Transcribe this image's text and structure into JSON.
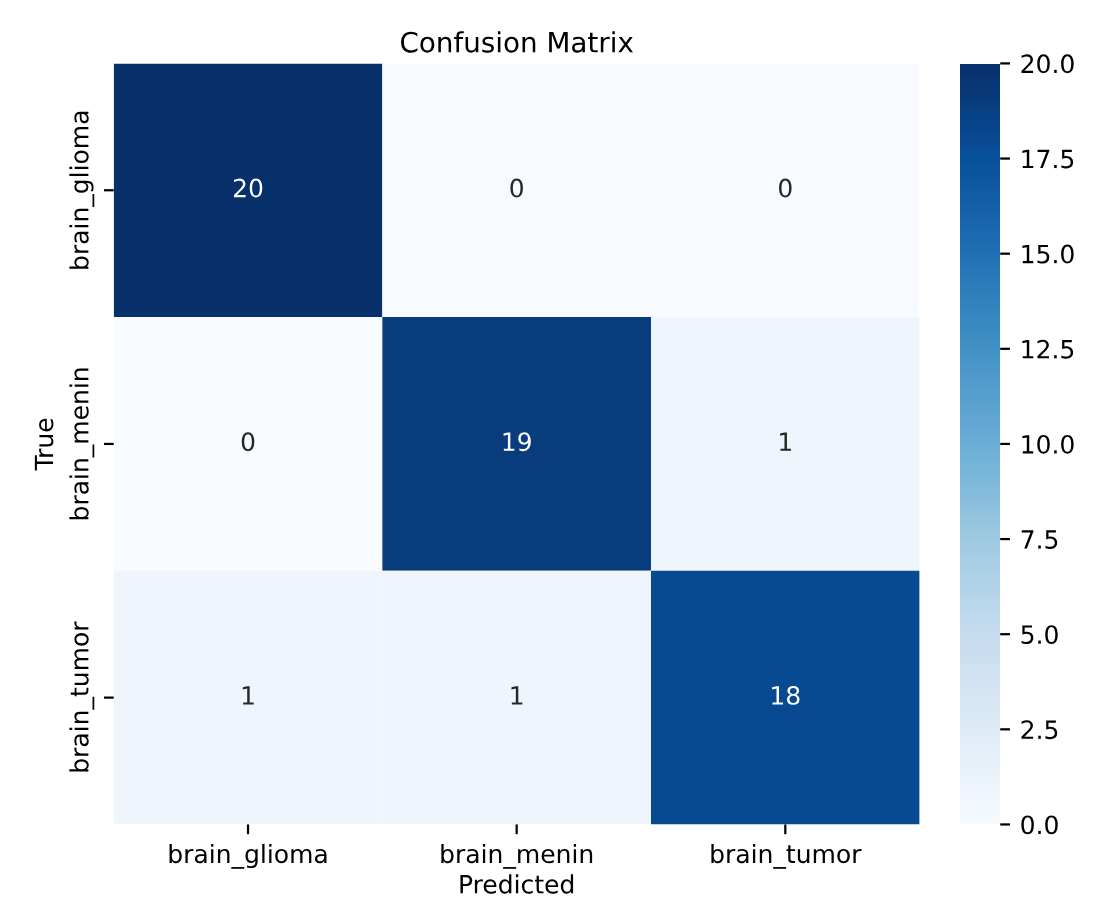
{
  "chart_data": {
    "type": "heatmap",
    "title": "Confusion Matrix",
    "xlabel": "Predicted",
    "ylabel": "True",
    "categories": [
      "brain_glioma",
      "brain_menin",
      "brain_tumor"
    ],
    "y_categories": [
      "brain_glioma",
      "brain_menin",
      "brain_tumor"
    ],
    "cells": [
      [
        20,
        0,
        0
      ],
      [
        0,
        19,
        1
      ],
      [
        1,
        1,
        18
      ]
    ],
    "data_labels": true,
    "clim": [
      0,
      20
    ],
    "cticks": [
      {
        "value": 0,
        "label": "0.0"
      },
      {
        "value": 2.5,
        "label": "2.5"
      },
      {
        "value": 5,
        "label": "5.0"
      },
      {
        "value": 7.5,
        "label": "7.5"
      },
      {
        "value": 10,
        "label": "10.0"
      },
      {
        "value": 12.5,
        "label": "12.5"
      },
      {
        "value": 15,
        "label": "15.0"
      },
      {
        "value": 17.5,
        "label": "17.5"
      },
      {
        "value": 20,
        "label": "20.0"
      }
    ]
  }
}
